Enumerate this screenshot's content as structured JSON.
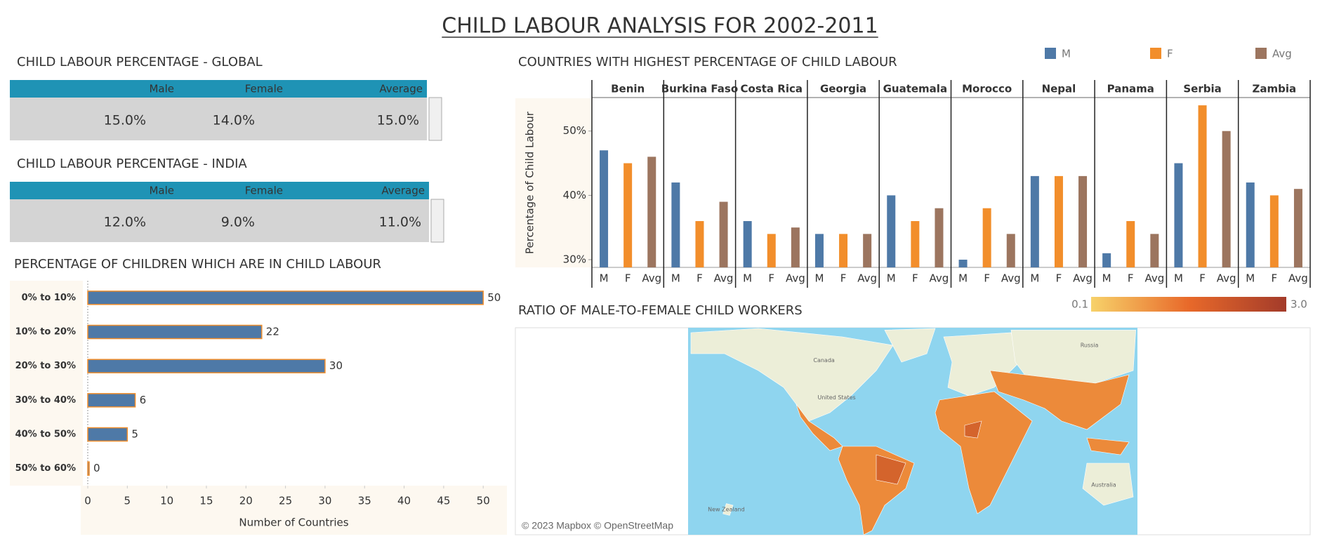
{
  "title": "CHILD LABOUR ANALYSIS FOR 2002-2011",
  "tables": [
    {
      "title": "CHILD LABOUR PERCENTAGE - GLOBAL",
      "headers": [
        "Male",
        "Female",
        "Average"
      ],
      "cells": [
        "15.0%",
        "14.0%",
        "15.0%"
      ]
    },
    {
      "title": "CHILD LABOUR PERCENTAGE - INDIA",
      "headers": [
        "Male",
        "Female",
        "Average"
      ],
      "cells": [
        "12.0%",
        "9.0%",
        "11.0%"
      ]
    }
  ],
  "chart_data": [
    {
      "type": "hbar",
      "title": "PERCENTAGE OF CHILDREN WHICH ARE IN CHILD LABOUR",
      "categories": [
        "0% to 10%",
        "10% to 20%",
        "20% to 30%",
        "30% to 40%",
        "40% to 50%",
        "50% to 60%"
      ],
      "values": [
        50,
        22,
        30,
        6,
        5,
        0
      ],
      "color": "#4e79a7",
      "edge_color": "#f28e2b",
      "xlim": [
        0,
        53
      ],
      "xticks": [
        0,
        5,
        10,
        15,
        20,
        25,
        30,
        35,
        40,
        45,
        50
      ],
      "xlabel": "Number of Countries",
      "grid": false
    },
    {
      "type": "faceted_bar",
      "title": "COUNTRIES WITH HIGHEST PERCENTAGE OF CHILD LABOUR",
      "facets": [
        "Benin",
        "Burkina Faso",
        "Costa Rica",
        "Georgia",
        "Guatemala",
        "Morocco",
        "Nepal",
        "Panama",
        "Serbia",
        "Zambia"
      ],
      "series": [
        {
          "name": "M",
          "color": "#4e79a7",
          "values": [
            47,
            42,
            36,
            34,
            40,
            30,
            43,
            31,
            45,
            42
          ]
        },
        {
          "name": "F",
          "color": "#f28e2b",
          "values": [
            45,
            36,
            34,
            34,
            36,
            38,
            43,
            36,
            54,
            40
          ]
        },
        {
          "name": "Avg",
          "color": "#9c755f",
          "values": [
            46,
            39,
            35,
            34,
            38,
            34,
            43,
            34,
            50,
            41
          ]
        }
      ],
      "ylabel": "Percentage of Child Labour",
      "ylim": [
        28.8,
        55.1
      ],
      "yticks": [
        {
          "value": 30,
          "label": "30%"
        },
        {
          "value": 40,
          "label": "40%"
        },
        {
          "value": 50,
          "label": "50%"
        }
      ],
      "legend": "top-right",
      "grid": false
    },
    {
      "type": "map",
      "title": "RATIO OF MALE-TO-FEMALE CHILD WORKERS",
      "legend_ticks": [
        0.1,
        {
          "value": 3.0,
          "label": "3.0"
        }
      ],
      "colors": [
        "#f7d26a",
        "#e8692a",
        "#a33b2a"
      ],
      "place_labels": [
        "Canada",
        "United States",
        "Russia",
        "Australia",
        "New Zealand"
      ],
      "attribution": "© 2023 Mapbox © OpenStreetMap"
    }
  ]
}
